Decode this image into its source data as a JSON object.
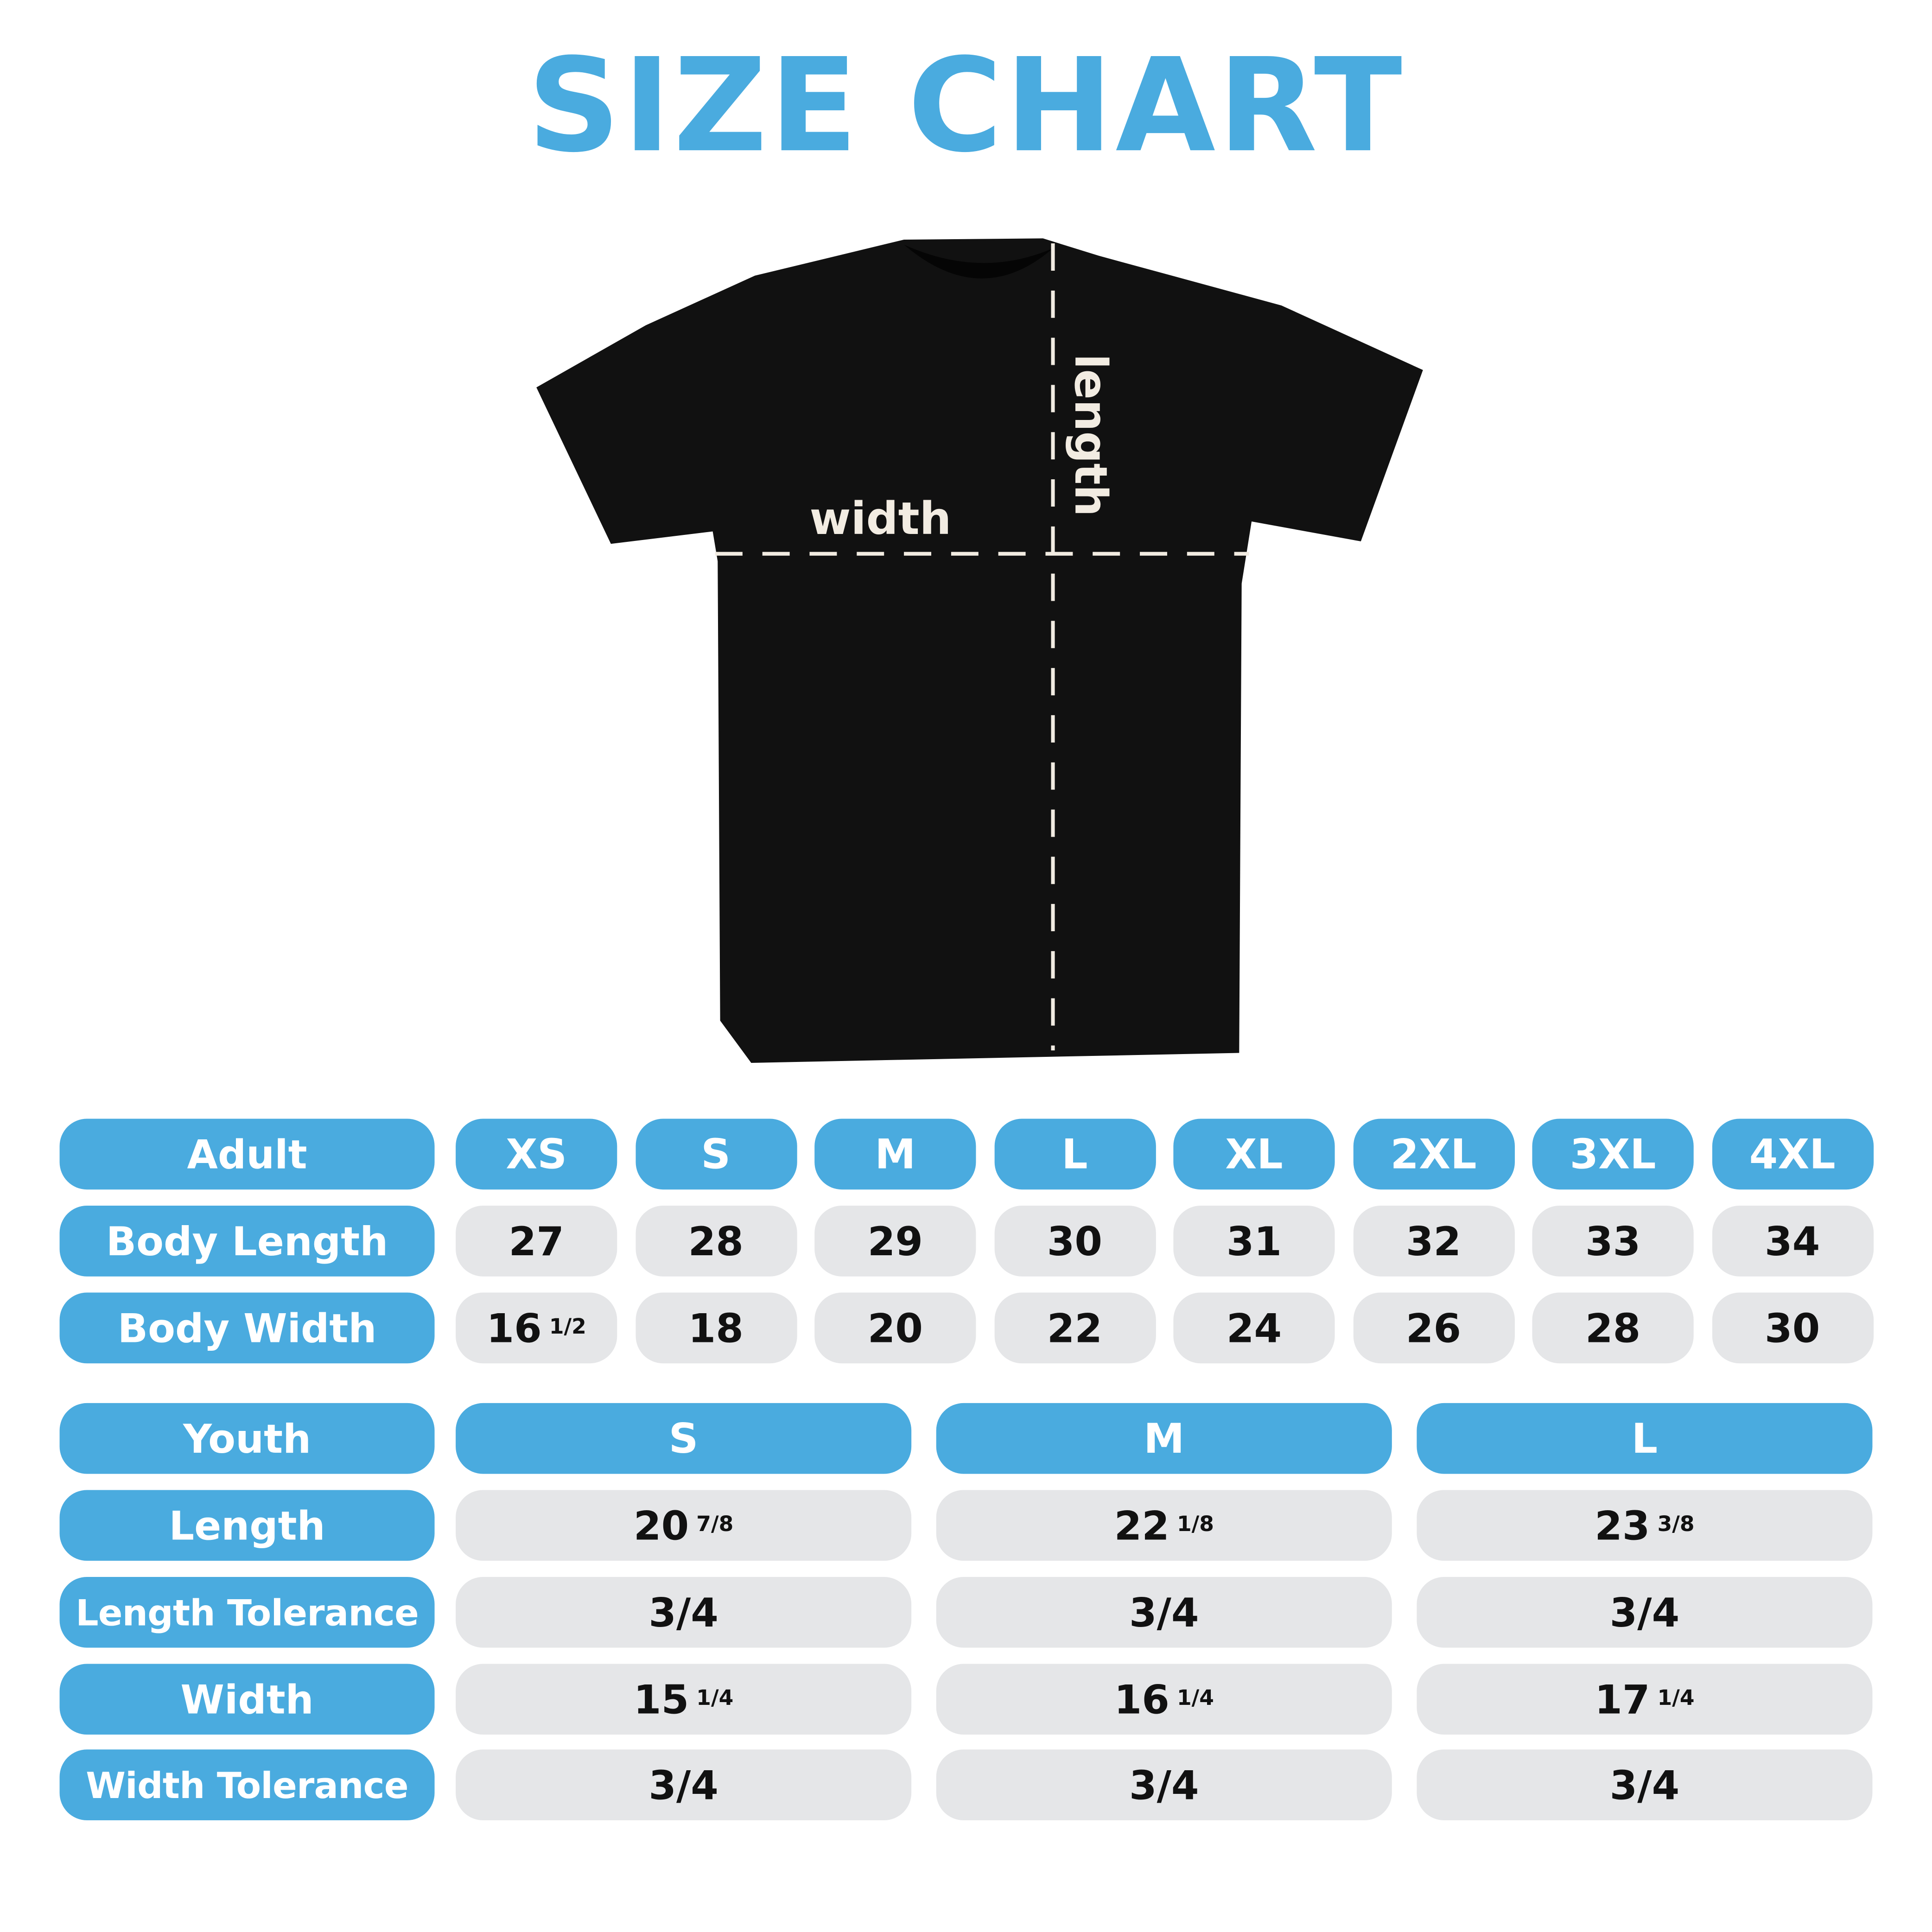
{
  "title": "SIZE CHART",
  "diagram": {
    "width_label": "width",
    "length_label": "length"
  },
  "colors": {
    "accent": "#4aabdf",
    "cell": "#e5e6e8",
    "shirt": "#111111"
  },
  "adult": {
    "header": "Adult",
    "sizes": [
      "XS",
      "S",
      "M",
      "L",
      "XL",
      "2XL",
      "3XL",
      "4XL"
    ],
    "rows": [
      {
        "label": "Body Length",
        "values": [
          {
            "whole": "27",
            "frac": ""
          },
          {
            "whole": "28",
            "frac": ""
          },
          {
            "whole": "29",
            "frac": ""
          },
          {
            "whole": "30",
            "frac": ""
          },
          {
            "whole": "31",
            "frac": ""
          },
          {
            "whole": "32",
            "frac": ""
          },
          {
            "whole": "33",
            "frac": ""
          },
          {
            "whole": "34",
            "frac": ""
          }
        ]
      },
      {
        "label": "Body Width",
        "values": [
          {
            "whole": "16",
            "frac": "1/2"
          },
          {
            "whole": "18",
            "frac": ""
          },
          {
            "whole": "20",
            "frac": ""
          },
          {
            "whole": "22",
            "frac": ""
          },
          {
            "whole": "24",
            "frac": ""
          },
          {
            "whole": "26",
            "frac": ""
          },
          {
            "whole": "28",
            "frac": ""
          },
          {
            "whole": "30",
            "frac": ""
          }
        ]
      }
    ]
  },
  "youth": {
    "header": "Youth",
    "sizes": [
      "S",
      "M",
      "L"
    ],
    "rows": [
      {
        "label": "Length",
        "values": [
          {
            "whole": "20",
            "frac": "7/8"
          },
          {
            "whole": "22",
            "frac": "1/8"
          },
          {
            "whole": "23",
            "frac": "3/8"
          }
        ]
      },
      {
        "label": "Length Tolerance",
        "values": [
          {
            "whole": "3/4",
            "frac": ""
          },
          {
            "whole": "3/4",
            "frac": ""
          },
          {
            "whole": "3/4",
            "frac": ""
          }
        ]
      },
      {
        "label": "Width",
        "values": [
          {
            "whole": "15",
            "frac": "1/4"
          },
          {
            "whole": "16",
            "frac": "1/4"
          },
          {
            "whole": "17",
            "frac": "1/4"
          }
        ]
      },
      {
        "label": "Width Tolerance",
        "values": [
          {
            "whole": "3/4",
            "frac": ""
          },
          {
            "whole": "3/4",
            "frac": ""
          },
          {
            "whole": "3/4",
            "frac": ""
          }
        ]
      }
    ]
  }
}
